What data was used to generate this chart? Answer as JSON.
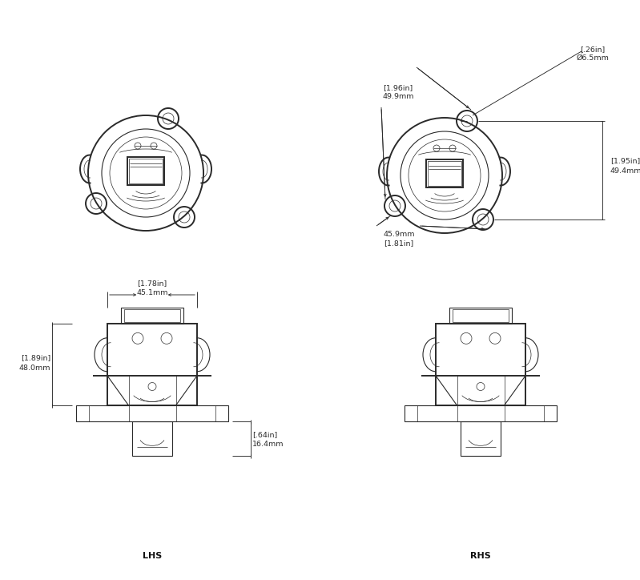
{
  "bg_color": "#ffffff",
  "line_color": "#2a2a2a",
  "dim_color": "#2a2a2a",
  "thin_lw": 0.5,
  "med_lw": 0.8,
  "thick_lw": 1.4,
  "font_size_label": 6.8,
  "font_size_bold": 8.0,
  "annotations": {
    "label_lhs": "LHS",
    "label_rhs": "RHS",
    "dim1": "[.26in]Ø6.5mm",
    "dim2_l1": "[1.96in]",
    "dim2_l2": "49.9mm",
    "dim3_l1": "[1.95in]",
    "dim3_l2": "49.4mm",
    "dim4_l1": "[1.81in]",
    "dim4_l2": "45.9mm",
    "dim5_l1": "[1.78in]",
    "dim5_l2": "45.1mm",
    "dim6_l1": "[1.89in]",
    "dim6_l2": "48.0mm",
    "dim7_l1": "[.64in]",
    "dim7_l2": "16.4mm"
  }
}
